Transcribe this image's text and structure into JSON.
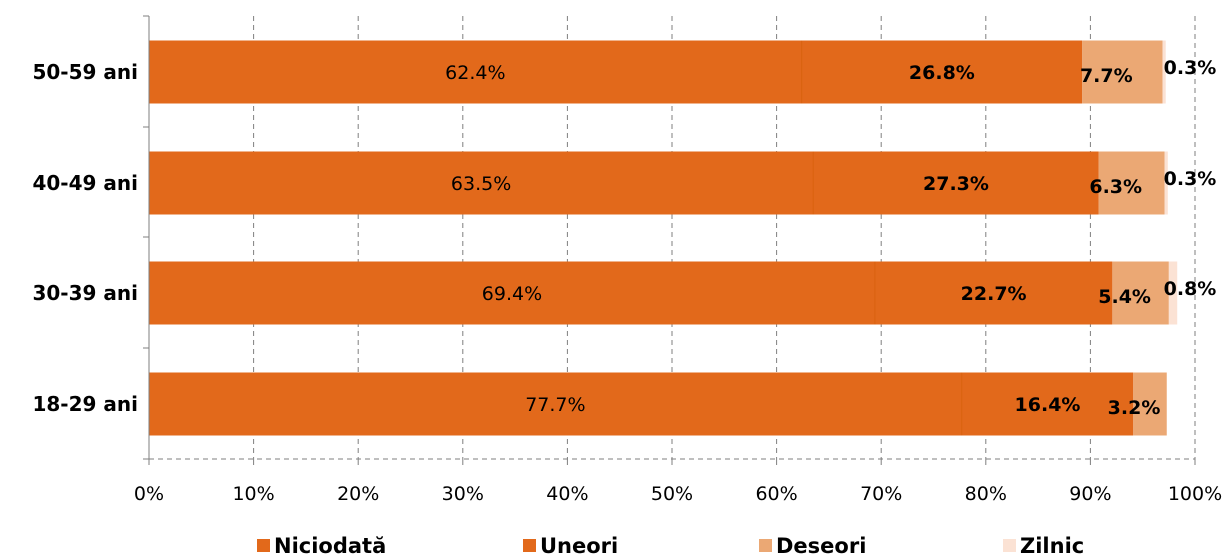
{
  "chart_data": {
    "type": "bar",
    "orientation": "horizontal",
    "stacked": "percent",
    "categories": [
      "50-59 ani",
      "40-49 ani",
      "30-39 ani",
      "18-29 ani"
    ],
    "series": [
      {
        "name": "Niciodată",
        "color": "#E2691B",
        "values": [
          62.4,
          63.5,
          69.4,
          77.7
        ],
        "labels": [
          "62.4%",
          "63.5%",
          "69.4%",
          "77.7%"
        ]
      },
      {
        "name": "Uneori",
        "color": "#E2691B",
        "values": [
          26.8,
          27.3,
          22.7,
          16.4
        ],
        "labels": [
          "26.8%",
          "27.3%",
          "22.7%",
          "16.4%"
        ]
      },
      {
        "name": "Deseori",
        "color": "#EBA874",
        "values": [
          7.7,
          6.3,
          5.4,
          3.2
        ],
        "labels": [
          "7.7%",
          "6.3%",
          "5.4%",
          "3.2%"
        ]
      },
      {
        "name": "Zilnic",
        "color": "#FBE2D4",
        "values": [
          0.3,
          0.3,
          0.8,
          0.0
        ],
        "labels": [
          "0.3%",
          "0.3%",
          "0.8%",
          ""
        ]
      }
    ],
    "xlim": [
      0,
      100
    ],
    "x_ticks": [
      "0%",
      "10%",
      "20%",
      "30%",
      "40%",
      "50%",
      "60%",
      "70%",
      "80%",
      "90%",
      "100%"
    ],
    "grid": "vertical dashed",
    "legend_position": "bottom"
  }
}
